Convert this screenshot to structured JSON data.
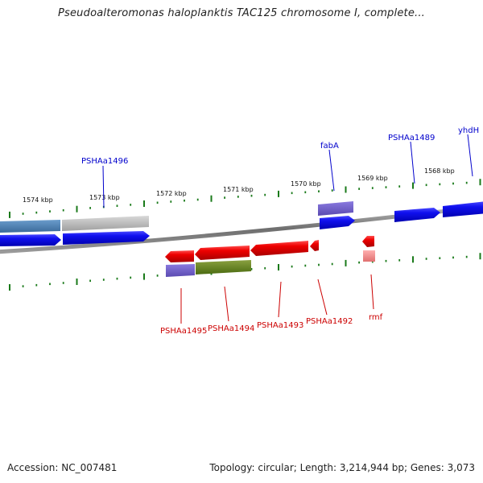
{
  "title": "Pseudoalteromonas haloplanktis TAC125 chromosome I, complete...",
  "footer": {
    "accession": "Accession: NC_007481",
    "topology": "Topology: circular; Length: 3,214,944 bp; Genes: 3,073"
  },
  "scale_ticks": [
    "1574 kbp",
    "1573 kbp",
    "1572 kbp",
    "1571 kbp",
    "1570 kbp",
    "1569 kbp",
    "1568 kbp"
  ],
  "gene_labels_top": [
    "PSHAa1496",
    "fabA",
    "PSHAa1489",
    "yhdH"
  ],
  "gene_labels_bottom": [
    "PSHAa1495",
    "PSHAa1494",
    "PSHAa1493",
    "PSHAa1492",
    "rmf"
  ],
  "colors": {
    "forward_label": "#0000cc",
    "reverse_label": "#cc0000",
    "tick": "#1a7a1a",
    "backbone": "#808080"
  }
}
